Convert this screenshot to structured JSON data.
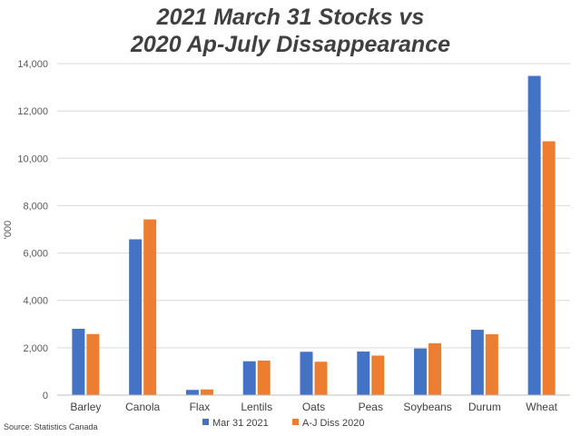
{
  "chart_data": {
    "type": "bar",
    "title_lines": [
      "2021 March 31 Stocks vs",
      "2020 Ap-July Dissappearance"
    ],
    "ylabel": "'000",
    "xlabel": "",
    "categories": [
      "Barley",
      "Canola",
      "Flax",
      "Lentils",
      "Oats",
      "Peas",
      "Soybeans",
      "Durum",
      "Wheat"
    ],
    "series": [
      {
        "name": "Mar 31 2021",
        "color": "#4472C4",
        "values": [
          2800,
          6580,
          220,
          1430,
          1830,
          1840,
          1970,
          2760,
          13480
        ]
      },
      {
        "name": "A-J Diss 2020",
        "color": "#ED7D31",
        "values": [
          2580,
          7420,
          240,
          1460,
          1410,
          1670,
          2190,
          2570,
          10720
        ]
      }
    ],
    "ylim": [
      0,
      14000
    ],
    "yticks": [
      "0",
      "2,000",
      "4,000",
      "6,000",
      "8,000",
      "10,000",
      "12,000",
      "14,000"
    ],
    "grid": true,
    "legend_position": "bottom"
  },
  "source_note": "Source: Statistics Canada"
}
